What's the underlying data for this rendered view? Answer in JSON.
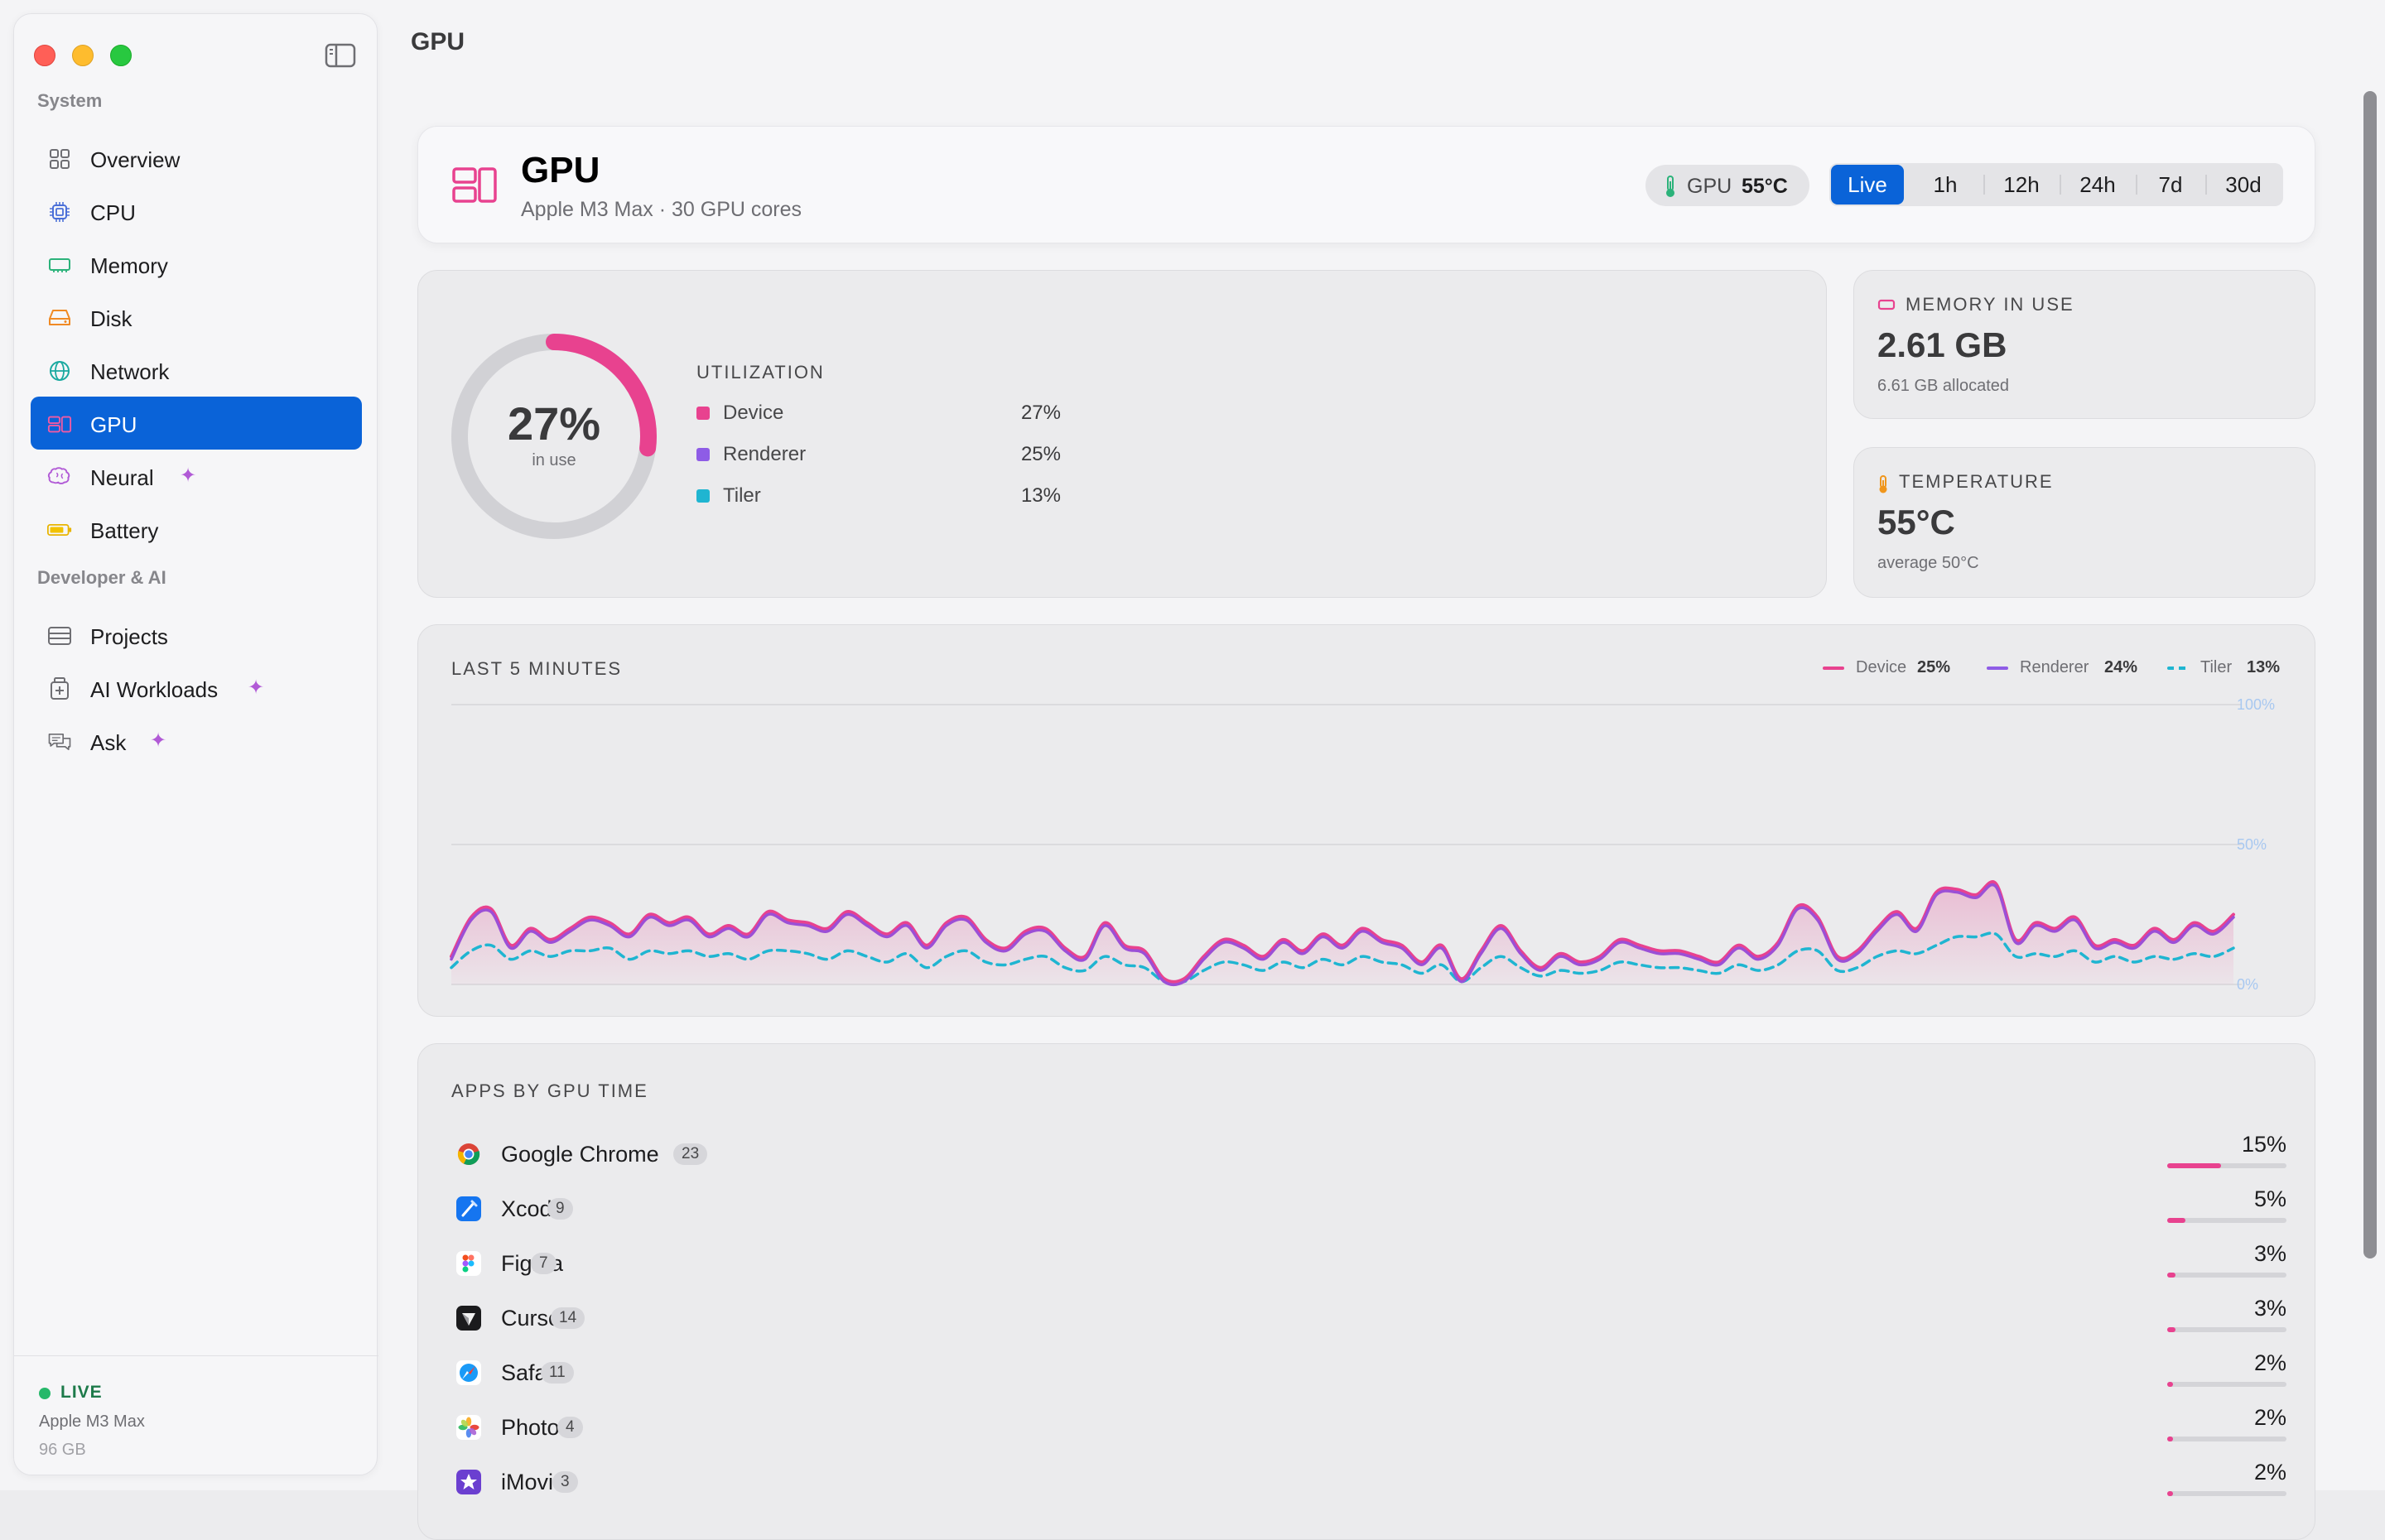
{
  "window": {
    "title": "GPU"
  },
  "sidebar": {
    "sections": [
      {
        "label": "System"
      },
      {
        "label": "Developer & AI"
      }
    ],
    "items": [
      {
        "label": "Overview",
        "icon": "grid-icon"
      },
      {
        "label": "CPU",
        "icon": "cpu-chip-icon"
      },
      {
        "label": "Memory",
        "icon": "memory-module-icon"
      },
      {
        "label": "Disk",
        "icon": "disk-drive-icon"
      },
      {
        "label": "Network",
        "icon": "globe-icon"
      },
      {
        "label": "GPU",
        "icon": "gpu-icon",
        "active": true
      },
      {
        "label": "Neural",
        "icon": "brain-icon",
        "sparkle": "✦"
      },
      {
        "label": "Battery",
        "icon": "battery-icon"
      },
      {
        "label": "Projects",
        "icon": "projects-icon"
      },
      {
        "label": "AI Workloads",
        "icon": "ai-workloads-icon",
        "sparkle": "✦"
      },
      {
        "label": "Ask",
        "icon": "chat-bubbles-icon",
        "sparkle": "✦"
      }
    ],
    "footer": {
      "status": "LIVE",
      "machine": "Apple M3 Max",
      "memory": "96 GB"
    }
  },
  "header": {
    "title": "GPU",
    "subtitle": "Apple M3 Max · 30 GPU cores",
    "temp_pill": {
      "label": "GPU",
      "value": "55°C"
    },
    "ranges": [
      "Live",
      "1h",
      "12h",
      "24h",
      "7d",
      "30d"
    ],
    "active_range": "Live"
  },
  "utilization": {
    "ring_value": "27%",
    "ring_fraction": 0.27,
    "ring_label": "in use",
    "heading": "UTILIZATION",
    "rows": [
      {
        "name": "Device",
        "value": "27%",
        "color": "#e8428f"
      },
      {
        "name": "Renderer",
        "value": "25%",
        "color": "#8e5ce6"
      },
      {
        "name": "Tiler",
        "value": "13%",
        "color": "#1fb5d1"
      }
    ]
  },
  "memory": {
    "heading": "MEMORY IN USE",
    "value": "2.61 GB",
    "sub": "6.61 GB allocated"
  },
  "temperature": {
    "heading": "TEMPERATURE",
    "value": "55°C",
    "sub": "average 50°C"
  },
  "colors": {
    "accent": "#0a63d8",
    "device": "#e8428f",
    "renderer": "#9b4fd6",
    "tiler": "#1fb5d1"
  },
  "chart_data": {
    "type": "line",
    "title": "LAST 5 MINUTES",
    "ylim": [
      0,
      100
    ],
    "yticks": [
      "100%",
      "50%",
      "0%"
    ],
    "grid": true,
    "legend_placement": "top-right",
    "legend": [
      {
        "name": "Device",
        "value": "25%"
      },
      {
        "name": "Renderer",
        "value": "24%"
      },
      {
        "name": "Tiler",
        "value": "13%"
      }
    ],
    "series": [
      {
        "name": "Device",
        "values": [
          10,
          24,
          27,
          14,
          20,
          16,
          20,
          24,
          22,
          18,
          25,
          22,
          24,
          18,
          21,
          18,
          26,
          23,
          22,
          20,
          26,
          22,
          18,
          22,
          14,
          22,
          24,
          16,
          13,
          19,
          20,
          13,
          10,
          22,
          14,
          12,
          2,
          2,
          10,
          16,
          14,
          10,
          16,
          12,
          18,
          14,
          20,
          16,
          14,
          8,
          14,
          2,
          12,
          21,
          12,
          6,
          11,
          8,
          10,
          16,
          14,
          12,
          12,
          10,
          8,
          14,
          10,
          15,
          28,
          24,
          10,
          12,
          20,
          26,
          20,
          33,
          34,
          32,
          36,
          16,
          22,
          20,
          24,
          14,
          16,
          14,
          20,
          16,
          22,
          19,
          25
        ]
      },
      {
        "name": "Renderer",
        "values": [
          9,
          23,
          26,
          13,
          19,
          15,
          19,
          23,
          21,
          17,
          24,
          21,
          23,
          17,
          20,
          17,
          25,
          22,
          21,
          19,
          25,
          21,
          17,
          21,
          13,
          21,
          23,
          15,
          12,
          18,
          19,
          12,
          9,
          21,
          13,
          11,
          1,
          1,
          9,
          15,
          13,
          9,
          15,
          11,
          17,
          13,
          19,
          15,
          13,
          7,
          13,
          1,
          11,
          20,
          11,
          5,
          10,
          7,
          9,
          15,
          13,
          11,
          11,
          9,
          7,
          13,
          9,
          14,
          27,
          23,
          9,
          11,
          19,
          25,
          19,
          32,
          33,
          31,
          35,
          15,
          21,
          19,
          23,
          13,
          15,
          13,
          19,
          15,
          21,
          18,
          24
        ]
      },
      {
        "name": "Tiler",
        "values": [
          6,
          12,
          14,
          9,
          12,
          10,
          12,
          12,
          13,
          9,
          12,
          11,
          12,
          10,
          11,
          9,
          12,
          12,
          11,
          9,
          12,
          10,
          8,
          11,
          6,
          10,
          12,
          8,
          7,
          9,
          10,
          6,
          5,
          10,
          7,
          6,
          1,
          1,
          5,
          8,
          7,
          5,
          8,
          6,
          9,
          7,
          10,
          8,
          7,
          4,
          7,
          1,
          6,
          10,
          6,
          3,
          5,
          4,
          5,
          8,
          7,
          6,
          6,
          5,
          4,
          7,
          5,
          7,
          12,
          12,
          5,
          6,
          10,
          12,
          11,
          14,
          17,
          17,
          18,
          10,
          11,
          10,
          12,
          8,
          10,
          8,
          10,
          9,
          11,
          10,
          13
        ]
      }
    ]
  },
  "apps": {
    "heading": "APPS BY GPU TIME",
    "rows": [
      {
        "name": "Google Chrome",
        "count": "23",
        "pct": "15%",
        "share": 0.45,
        "icon": "chrome-icon"
      },
      {
        "name": "Xcode",
        "count": "9",
        "pct": "5%",
        "share": 0.15,
        "icon": "xcode-icon"
      },
      {
        "name": "Figma",
        "count": "7",
        "pct": "3%",
        "share": 0.07,
        "icon": "figma-icon"
      },
      {
        "name": "Cursor",
        "count": "14",
        "pct": "3%",
        "share": 0.07,
        "icon": "cursor-icon"
      },
      {
        "name": "Safari",
        "count": "11",
        "pct": "2%",
        "share": 0.05,
        "icon": "safari-icon"
      },
      {
        "name": "Photos",
        "count": "4",
        "pct": "2%",
        "share": 0.05,
        "icon": "photos-icon"
      },
      {
        "name": "iMovie",
        "count": "3",
        "pct": "2%",
        "share": 0.05,
        "icon": "imovie-icon"
      }
    ]
  }
}
